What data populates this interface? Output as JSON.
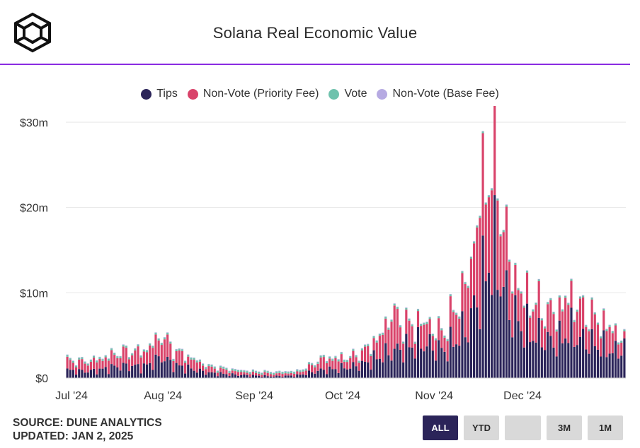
{
  "header": {
    "title": "Solana Real Economic Value"
  },
  "legend": {
    "items": [
      {
        "label": "Tips",
        "color": "#2b2459"
      },
      {
        "label": "Non-Vote (Priority Fee)",
        "color": "#d9436a"
      },
      {
        "label": "Vote",
        "color": "#6fc2ad"
      },
      {
        "label": "Non-Vote (Base Fee)",
        "color": "#b6aae2"
      }
    ]
  },
  "footer": {
    "source": "SOURCE: DUNE ANALYTICS",
    "updated": "UPDATED: JAN 2, 2025"
  },
  "range_buttons": [
    {
      "label": "ALL",
      "active": true
    },
    {
      "label": "YTD",
      "active": false
    },
    {
      "label": "",
      "active": false
    },
    {
      "label": "3M",
      "active": false
    },
    {
      "label": "1M",
      "active": false
    }
  ],
  "chart_data": {
    "type": "bar",
    "stacked": true,
    "title": "Solana Real Economic Value",
    "x_tick_labels": [
      "Jul '24",
      "Aug '24",
      "Sep '24",
      "Oct '24",
      "Nov '24",
      "Dec '24"
    ],
    "y_tick_labels": [
      "$0",
      "$10m",
      "$20m",
      "$30m"
    ],
    "ylim": [
      0,
      30
    ],
    "y_unit": "millions USD",
    "grid": true,
    "legend_position": "top-center",
    "series_names": [
      "Tips",
      "Non-Vote (Priority Fee)",
      "Vote",
      "Non-Vote (Base Fee)"
    ],
    "anchors": {
      "tips": [
        [
          0,
          0.9
        ],
        [
          4,
          0.8
        ],
        [
          8,
          0.8
        ],
        [
          12,
          1.0
        ],
        [
          16,
          1.3
        ],
        [
          20,
          1.4
        ],
        [
          26,
          1.3
        ],
        [
          30,
          2.0
        ],
        [
          32,
          2.5
        ],
        [
          36,
          1.5
        ],
        [
          40,
          1.2
        ],
        [
          44,
          0.9
        ],
        [
          48,
          0.6
        ],
        [
          52,
          0.5
        ],
        [
          56,
          0.4
        ],
        [
          62,
          0.3
        ],
        [
          70,
          0.2
        ],
        [
          78,
          0.3
        ],
        [
          82,
          0.6
        ],
        [
          86,
          0.9
        ],
        [
          90,
          1.0
        ],
        [
          94,
          1.2
        ],
        [
          98,
          1.4
        ],
        [
          102,
          1.8
        ],
        [
          106,
          2.5
        ],
        [
          110,
          3.0
        ],
        [
          114,
          3.5
        ],
        [
          118,
          3.8
        ],
        [
          122,
          4.0
        ],
        [
          124,
          3.5
        ],
        [
          128,
          3.2
        ],
        [
          132,
          4.5
        ],
        [
          136,
          6.0
        ],
        [
          140,
          10.0
        ],
        [
          144,
          14.5
        ],
        [
          147,
          12.0
        ],
        [
          150,
          8.0
        ],
        [
          154,
          6.0
        ],
        [
          158,
          5.0
        ],
        [
          162,
          4.5
        ],
        [
          166,
          4.0
        ],
        [
          170,
          5.5
        ],
        [
          172,
          5.0
        ],
        [
          174,
          4.5
        ],
        [
          178,
          4.0
        ],
        [
          182,
          3.5
        ],
        [
          186,
          3.0
        ],
        [
          189,
          3.6
        ]
      ],
      "priority": [
        [
          0,
          1.1
        ],
        [
          4,
          1.0
        ],
        [
          8,
          1.1
        ],
        [
          12,
          1.2
        ],
        [
          16,
          1.4
        ],
        [
          20,
          1.6
        ],
        [
          26,
          1.7
        ],
        [
          30,
          2.2
        ],
        [
          32,
          2.5
        ],
        [
          36,
          1.7
        ],
        [
          40,
          1.3
        ],
        [
          44,
          1.0
        ],
        [
          48,
          0.6
        ],
        [
          52,
          0.5
        ],
        [
          56,
          0.4
        ],
        [
          62,
          0.3
        ],
        [
          70,
          0.3
        ],
        [
          78,
          0.3
        ],
        [
          82,
          0.6
        ],
        [
          86,
          1.2
        ],
        [
          90,
          1.2
        ],
        [
          94,
          1.0
        ],
        [
          98,
          1.1
        ],
        [
          102,
          1.6
        ],
        [
          106,
          2.2
        ],
        [
          110,
          4.5
        ],
        [
          114,
          2.8
        ],
        [
          118,
          2.2
        ],
        [
          122,
          2.6
        ],
        [
          124,
          2.0
        ],
        [
          128,
          2.2
        ],
        [
          132,
          3.8
        ],
        [
          136,
          5.5
        ],
        [
          140,
          10.5
        ],
        [
          144,
          11.5
        ],
        [
          147,
          9.0
        ],
        [
          150,
          5.5
        ],
        [
          154,
          3.8
        ],
        [
          158,
          3.8
        ],
        [
          162,
          3.4
        ],
        [
          166,
          3.4
        ],
        [
          170,
          4.0
        ],
        [
          172,
          3.7
        ],
        [
          174,
          3.6
        ],
        [
          178,
          3.1
        ],
        [
          182,
          2.7
        ],
        [
          186,
          2.4
        ],
        [
          189,
          0.7
        ]
      ],
      "vote": 0.2,
      "base_fee": 0.06,
      "day_count": 190,
      "day_offsets_for_x_ticks": [
        0,
        31,
        62,
        92,
        123,
        153
      ]
    }
  }
}
